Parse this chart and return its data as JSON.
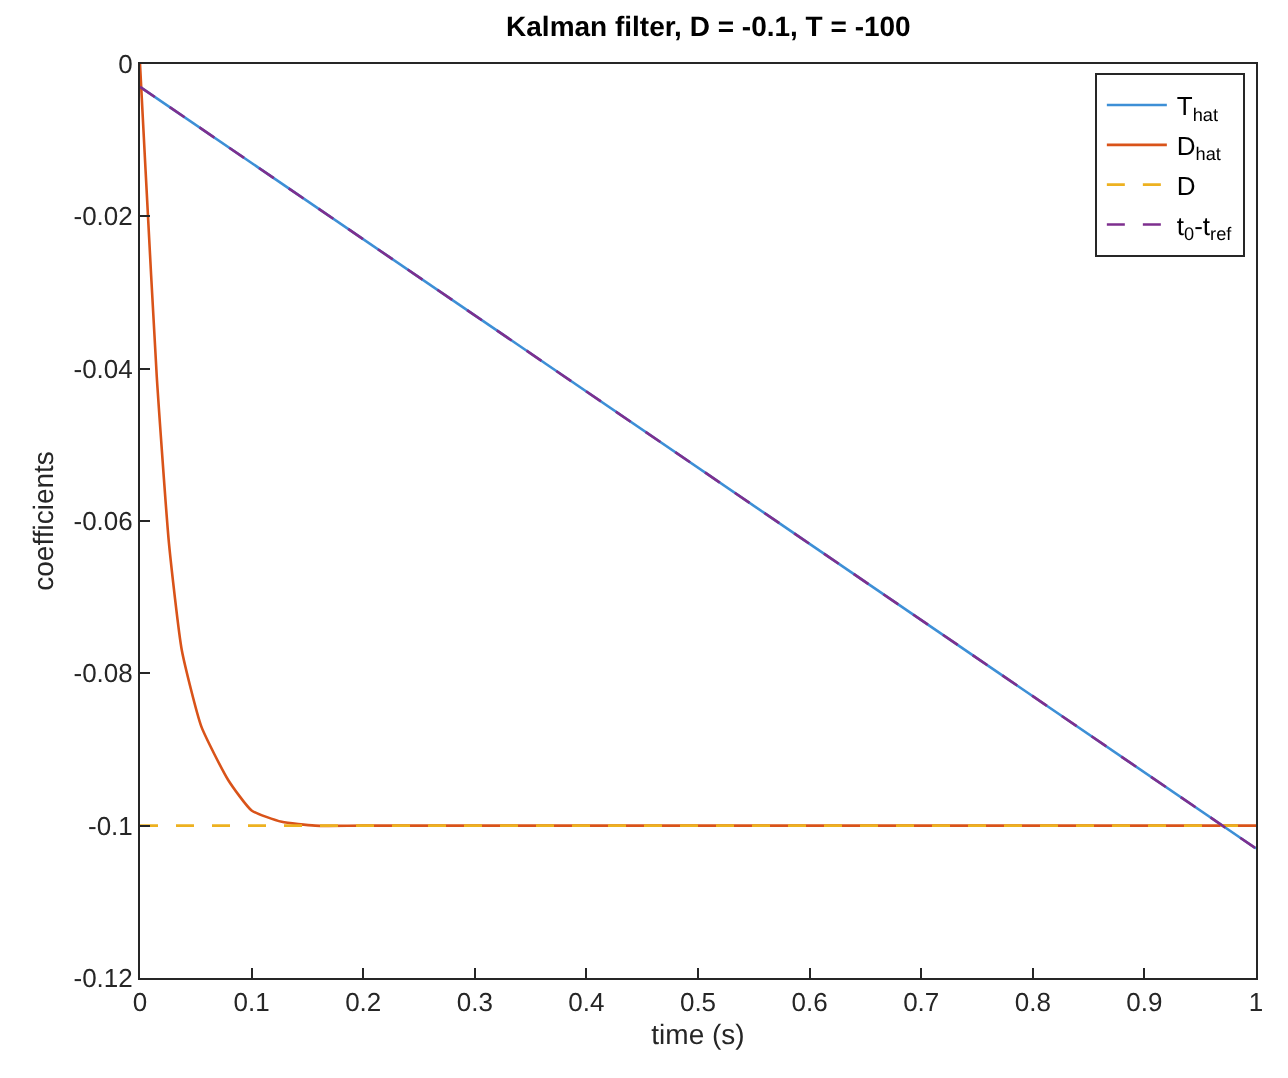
{
  "chart_data": {
    "type": "line",
    "title": "Kalman filter, D = -0.1, T = -100",
    "xlabel": "time (s)",
    "ylabel": "coefficients",
    "xlim": [
      0,
      1
    ],
    "ylim": [
      -0.12,
      0
    ],
    "xticks": [
      0,
      0.1,
      0.2,
      0.3,
      0.4,
      0.5,
      0.6,
      0.7,
      0.8,
      0.9,
      1
    ],
    "yticks": [
      -0.12,
      -0.1,
      -0.08,
      -0.06,
      -0.04,
      -0.02,
      0
    ],
    "legend": "top right",
    "marker": "none",
    "series": [
      {
        "name": "T$_{hat}$",
        "color": "#3d8fd6",
        "line_style": "solid",
        "x": [
          0,
          1
        ],
        "values": [
          -0.003,
          -0.103
        ]
      },
      {
        "name": "D$_{hat}$",
        "color": "#d95319",
        "line_style": "solid",
        "x": [
          0,
          0.005,
          0.015,
          0.026,
          0.0375,
          0.055,
          0.079,
          0.1,
          0.127,
          0.157,
          0.2,
          1
        ],
        "values": [
          0,
          -0.014,
          -0.041,
          -0.063,
          -0.077,
          -0.087,
          -0.094,
          -0.098,
          -0.0995,
          -0.1,
          -0.1,
          -0.1
        ]
      },
      {
        "name": "D",
        "color": "#edb120",
        "line_style": "dashed",
        "x": [
          0,
          1
        ],
        "values": [
          -0.1,
          -0.1
        ]
      },
      {
        "name": "t$_{0}$-t$_{ref}$",
        "color": "#7e2f8e",
        "line_style": "dashed",
        "x": [
          0,
          1
        ],
        "values": [
          -0.003,
          -0.103
        ]
      }
    ]
  }
}
